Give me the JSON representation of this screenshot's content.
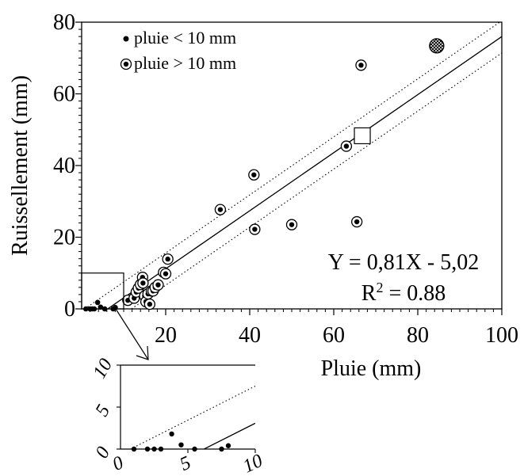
{
  "chart_data": [
    {
      "type": "scatter",
      "xlabel": "Pluie (mm)",
      "ylabel": "Ruissellement (mm)",
      "xlim": [
        0,
        100
      ],
      "ylim": [
        0,
        80
      ],
      "x_ticks": [
        20,
        40,
        60,
        80,
        100
      ],
      "y_ticks": [
        0,
        20,
        40,
        60,
        80
      ],
      "grid": false,
      "legend": {
        "position": "top-left",
        "entries": [
          {
            "label": "pluie < 10 mm",
            "marker": "dot"
          },
          {
            "label": "pluie > 10 mm",
            "marker": "ringed-dot"
          }
        ]
      },
      "regression": {
        "equation": "Y = 0,81X - 5,02",
        "r2_label": "R",
        "r2_sup": "2",
        "r2_value": " = 0.88",
        "slope": 0.81,
        "intercept": -5.02,
        "band_intercepts": [
          -0.6,
          -9.6
        ]
      },
      "series": [
        {
          "name": "pluie < 10 mm",
          "marker": "dot",
          "points": [
            [
              1,
              0
            ],
            [
              2,
              0
            ],
            [
              2.5,
              0
            ],
            [
              3,
              0
            ],
            [
              3.8,
              1.8
            ],
            [
              4.5,
              0.5
            ],
            [
              5.5,
              0
            ],
            [
              7.5,
              0
            ],
            [
              8,
              0.4
            ]
          ]
        },
        {
          "name": "pluie > 10 mm",
          "marker": "ringed-dot",
          "points": [
            [
              11,
              2.4
            ],
            [
              12.5,
              3
            ],
            [
              13,
              4.7
            ],
            [
              13.5,
              5.8
            ],
            [
              14,
              6.8
            ],
            [
              14.5,
              8.8
            ],
            [
              14.6,
              7.2
            ],
            [
              15,
              3.6
            ],
            [
              15.3,
              2
            ],
            [
              15.8,
              4.2
            ],
            [
              16.2,
              1.3
            ],
            [
              16.6,
              5
            ],
            [
              17,
              5
            ],
            [
              17.5,
              6
            ],
            [
              18.2,
              6.7
            ],
            [
              19.5,
              10.2
            ],
            [
              20,
              9.8
            ],
            [
              20.5,
              13.9
            ],
            [
              33,
              27.7
            ],
            [
              41,
              37.4
            ],
            [
              41.2,
              22.2
            ],
            [
              50,
              23.5
            ],
            [
              63,
              45.4
            ],
            [
              65.5,
              24.3
            ],
            [
              66.5,
              68
            ]
          ]
        }
      ],
      "special_markers": [
        {
          "kind": "hatched-circle",
          "x": 84.5,
          "y": 73.4
        },
        {
          "kind": "open-square",
          "x": 66.8,
          "y": 48.3
        }
      ],
      "zoom_box": {
        "x": [
          0,
          10
        ],
        "y": [
          0,
          10
        ]
      }
    },
    {
      "type": "scatter",
      "xlim": [
        0,
        10
      ],
      "ylim": [
        0,
        10
      ],
      "x_ticks": [
        0,
        5,
        10
      ],
      "y_ticks": [
        0,
        5,
        10
      ],
      "grid": false,
      "series": [
        {
          "marker": "dot",
          "points": [
            [
              1,
              0
            ],
            [
              2,
              0
            ],
            [
              2.5,
              0
            ],
            [
              3,
              0
            ],
            [
              3.8,
              1.8
            ],
            [
              4.5,
              0.5
            ],
            [
              5.5,
              0
            ],
            [
              7.5,
              0
            ],
            [
              8,
              0.4
            ]
          ]
        }
      ]
    }
  ]
}
